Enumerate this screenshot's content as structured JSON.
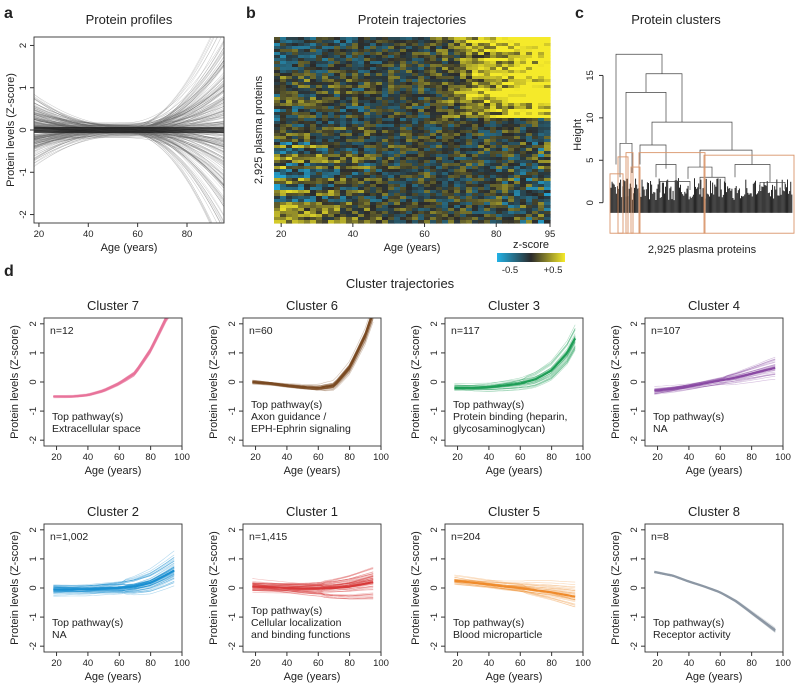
{
  "panels": {
    "a": {
      "label": "a",
      "title": "Protein profiles",
      "xlabel": "Age (years)",
      "ylabel": "Protein levels (Z-score)",
      "xticks": [
        20,
        40,
        60,
        80
      ],
      "yticks": [
        -2,
        -1,
        0,
        1,
        2
      ]
    },
    "b": {
      "label": "b",
      "title": "Protein trajectories",
      "xlabel": "Age (years)",
      "ylabel": "2,925 plasma proteins",
      "xticks": [
        20,
        40,
        60,
        80,
        95
      ],
      "colorbar_title": "z-score",
      "colorbar_min": "-0.5",
      "colorbar_max": "+0.5",
      "colors": {
        "low": "#22b2e6",
        "mid": "#2b2b2b",
        "high": "#f5ea2a"
      }
    },
    "c": {
      "label": "c",
      "title": "Protein clusters",
      "ylabel": "Height",
      "xlabel": "2,925 plasma proteins",
      "yticks": [
        0,
        5,
        10,
        15
      ],
      "box_color": "#d9956a"
    },
    "d": {
      "label": "d",
      "title": "Cluster trajectories"
    }
  },
  "chart_data": [
    {
      "panel": "a",
      "type": "line",
      "title": "Protein profiles",
      "xlabel": "Age (years)",
      "ylabel": "Protein levels (Z-score)",
      "xlim": [
        18,
        95
      ],
      "ylim": [
        -2.2,
        2.2
      ],
      "description_values": {
        "n_lines": 2925,
        "spread_at_20": 0.6,
        "spread_at_55": 0.15,
        "spread_at_95": 2.2
      }
    },
    {
      "panel": "b",
      "type": "heatmap",
      "title": "Protein trajectories",
      "xlabel": "Age (years)",
      "ylabel": "2,925 plasma proteins",
      "xlim": [
        18,
        95
      ],
      "zlim": [
        -0.5,
        0.5
      ]
    },
    {
      "panel": "c",
      "type": "dendrogram",
      "title": "Protein clusters",
      "ylabel": "Height",
      "xlabel": "2,925 plasma proteins",
      "ylim": [
        0,
        18
      ],
      "merge_heights": [
        17.5,
        15.2,
        13.0,
        9.5,
        8.5,
        6.2,
        5.5
      ]
    },
    {
      "panel": "d",
      "type": "line",
      "title": "Cluster trajectories",
      "xlabel": "Age (years)",
      "ylabel": "Protein levels (Z-score)",
      "xlim": [
        12,
        100
      ],
      "ylim": [
        -2.2,
        2.2
      ],
      "xticks": [
        20,
        40,
        60,
        80,
        100
      ],
      "yticks": [
        -2,
        -1,
        0,
        1,
        2
      ],
      "x": [
        18,
        30,
        40,
        50,
        60,
        70,
        80,
        90,
        95
      ],
      "clusters": [
        {
          "name": "Cluster 7",
          "n": "n=12",
          "pathway_title": "Top pathway(s)",
          "pathway": [
            "Extracellular space"
          ],
          "color": "#e8739a",
          "spread": 0.08,
          "y": [
            -0.5,
            -0.5,
            -0.45,
            -0.3,
            -0.05,
            0.3,
            1.1,
            2.2,
            2.6
          ]
        },
        {
          "name": "Cluster 6",
          "n": "n=60",
          "pathway_title": "Top pathway(s)",
          "pathway": [
            "Axon guidance /",
            "EPH-Ephrin signaling"
          ],
          "color": "#7a4a22",
          "spread": 0.18,
          "y": [
            0.0,
            -0.05,
            -0.12,
            -0.17,
            -0.2,
            -0.12,
            0.5,
            1.6,
            2.4
          ]
        },
        {
          "name": "Cluster 3",
          "n": "n=117",
          "pathway_title": "Top pathway(s)",
          "pathway": [
            "Protein binding (heparin,",
            "glycosaminoglycan)"
          ],
          "color": "#1e9e56",
          "spread": 0.3,
          "y": [
            -0.2,
            -0.2,
            -0.18,
            -0.12,
            -0.05,
            0.1,
            0.4,
            1.0,
            1.5
          ]
        },
        {
          "name": "Cluster 4",
          "n": "n=107",
          "pathway_title": "Top pathway(s)",
          "pathway": [
            "NA"
          ],
          "color": "#8a4aa4",
          "spread": 0.25,
          "y": [
            -0.3,
            -0.23,
            -0.15,
            -0.05,
            0.05,
            0.15,
            0.28,
            0.42,
            0.48
          ]
        },
        {
          "name": "Cluster 2",
          "n": "n=1,002",
          "pathway_title": "Top pathway(s)",
          "pathway": [
            "NA"
          ],
          "color": "#1a8fd1",
          "spread": 0.35,
          "y": [
            -0.05,
            -0.05,
            -0.05,
            -0.02,
            0.0,
            0.05,
            0.18,
            0.45,
            0.6
          ]
        },
        {
          "name": "Cluster 1",
          "n": "n=1,415",
          "pathway_title": "Top pathway(s)",
          "pathway": [
            "Cellular localization",
            "and binding functions"
          ],
          "color": "#d83a3a",
          "spread": 0.35,
          "y": [
            0.05,
            0.02,
            0.0,
            -0.02,
            -0.02,
            0.0,
            0.05,
            0.15,
            0.2
          ]
        },
        {
          "name": "Cluster 5",
          "n": "n=204",
          "pathway_title": "Top pathway(s)",
          "pathway": [
            "Blood microparticle"
          ],
          "color": "#ef8b2c",
          "spread": 0.3,
          "y": [
            0.25,
            0.18,
            0.12,
            0.05,
            0.0,
            -0.08,
            -0.15,
            -0.25,
            -0.3
          ]
        },
        {
          "name": "Cluster 8",
          "n": "n=8",
          "pathway_title": "Top pathway(s)",
          "pathway": [
            "Receptor activity"
          ],
          "color": "#8c97a4",
          "spread": 0.05,
          "y": [
            0.55,
            0.42,
            0.22,
            0.05,
            -0.15,
            -0.45,
            -0.85,
            -1.25,
            -1.45
          ]
        }
      ]
    }
  ]
}
